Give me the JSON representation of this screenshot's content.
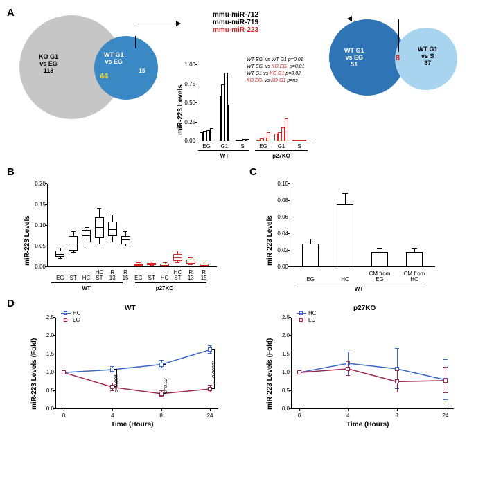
{
  "panelA": {
    "label": "A",
    "leftVenn": {
      "circle1": {
        "label": "KO G1\nvs EG\n113",
        "color": "#c6c6c6"
      },
      "circle2": {
        "label": "WT G1\nvs EG",
        "rightLabel": "15",
        "color": "#3a88c4"
      },
      "overlap": {
        "value": "44",
        "color": "#f2e24a"
      }
    },
    "mirList": {
      "line1": "mmu-miR-712",
      "line2": "mmu-miR-719",
      "line3": "mmu-miR-223"
    },
    "rightVenn": {
      "circle1": {
        "label": "WT G1\nvs EG\n51",
        "color": "#2f74b5"
      },
      "circle2": {
        "label": "WT G1\nvs S\n37",
        "color": "#a8d4ef"
      },
      "overlap": {
        "value": "8",
        "color": "#d62728"
      }
    },
    "barChart": {
      "ylabel": "miR-223 Levels",
      "ylim": [
        0,
        1.0
      ],
      "yticks": [
        0.0,
        0.25,
        0.5,
        0.75,
        1.0
      ],
      "groups": [
        "EG",
        "G1",
        "S",
        "EG",
        "G1",
        "S"
      ],
      "superGroups": [
        "WT",
        "p27KO"
      ],
      "wt": {
        "color": "#000000",
        "EG": [
          0.12,
          0.14,
          0.15,
          0.17
        ],
        "G1": [
          0.6,
          0.75,
          0.9,
          0.48
        ],
        "S": [
          0.02,
          0.02,
          0.03,
          0.03
        ]
      },
      "ko": {
        "color": "#d62728",
        "EG": [
          0.02,
          0.04,
          0.05,
          0.12
        ],
        "G1": [
          0.1,
          0.12,
          0.18,
          0.3
        ],
        "S": [
          0.01,
          0.01,
          0.02,
          0.02
        ]
      },
      "stats": [
        {
          "text": "WT EG. vs WT G1 p=0.01"
        },
        {
          "text": "WT EG. vs KO EG. p=0.01",
          "highlight": "KO EG."
        },
        {
          "text": "WT G1 vs KO G1 p=0.02",
          "highlight": "KO G1"
        },
        {
          "text": "KO EG. vs KO G1 p=ns",
          "highlight": "KO EG.",
          "highlight2": "KO G1"
        }
      ]
    }
  },
  "panelB": {
    "label": "B",
    "ylabel": "miR-223 Levels",
    "ylim": [
      0,
      0.2
    ],
    "yticks": [
      0.0,
      0.05,
      0.1,
      0.15,
      0.2
    ],
    "categories": [
      "EG",
      "ST",
      "HC",
      "HC\nST",
      "R\n13",
      "R\n15",
      "EG",
      "ST",
      "HC",
      "HC\nST",
      "R\n13",
      "R\n15"
    ],
    "superGroups": [
      "WT",
      "p27KO"
    ],
    "wt": {
      "color": "#000000",
      "boxes": [
        {
          "q1": 0.025,
          "med": 0.03,
          "q3": 0.04,
          "lo": 0.02,
          "hi": 0.045
        },
        {
          "q1": 0.04,
          "med": 0.055,
          "q3": 0.075,
          "lo": 0.035,
          "hi": 0.085
        },
        {
          "q1": 0.06,
          "med": 0.075,
          "q3": 0.09,
          "lo": 0.05,
          "hi": 0.095
        },
        {
          "q1": 0.07,
          "med": 0.095,
          "q3": 0.12,
          "lo": 0.055,
          "hi": 0.14
        },
        {
          "q1": 0.075,
          "med": 0.09,
          "q3": 0.11,
          "lo": 0.06,
          "hi": 0.125
        },
        {
          "q1": 0.055,
          "med": 0.065,
          "q3": 0.075,
          "lo": 0.05,
          "hi": 0.085
        }
      ]
    },
    "ko": {
      "color": "#d62728",
      "boxes": [
        {
          "q1": 0.003,
          "med": 0.005,
          "q3": 0.008,
          "lo": 0.002,
          "hi": 0.01
        },
        {
          "q1": 0.005,
          "med": 0.007,
          "q3": 0.01,
          "lo": 0.003,
          "hi": 0.012
        },
        {
          "q1": 0.004,
          "med": 0.006,
          "q3": 0.008,
          "lo": 0.002,
          "hi": 0.01
        },
        {
          "q1": 0.015,
          "med": 0.022,
          "q3": 0.032,
          "lo": 0.01,
          "hi": 0.038
        },
        {
          "q1": 0.008,
          "med": 0.012,
          "q3": 0.018,
          "lo": 0.005,
          "hi": 0.022
        },
        {
          "q1": 0.004,
          "med": 0.006,
          "q3": 0.009,
          "lo": 0.002,
          "hi": 0.012
        }
      ]
    }
  },
  "panelC": {
    "label": "C",
    "ylabel": "miR-223 Levels",
    "ylim": [
      0,
      0.1
    ],
    "yticks": [
      0.0,
      0.02,
      0.04,
      0.06,
      0.08,
      0.1
    ],
    "categories": [
      "EG",
      "HC",
      "CM from\nEG",
      "CM from\nHC"
    ],
    "values": [
      0.028,
      0.076,
      0.018,
      0.018
    ],
    "errors": [
      0.005,
      0.012,
      0.004,
      0.004
    ],
    "superGroup": "WT"
  },
  "panelD": {
    "label": "D",
    "ylabel": "miR-223 Levels (Fold)",
    "xlabel": "Time (Hours)",
    "xlim": [
      0,
      24
    ],
    "xticks": [
      0,
      4,
      8,
      24
    ],
    "ylim": [
      0,
      2.5
    ],
    "yticks": [
      0.0,
      0.5,
      1.0,
      1.5,
      2.0,
      2.5
    ],
    "legend": [
      {
        "label": "HC",
        "color": "#3a66c4"
      },
      {
        "label": "LC",
        "color": "#9c2550"
      }
    ],
    "wt": {
      "title": "WT",
      "hc": {
        "color": "#3a66c4",
        "x": [
          0,
          4,
          8,
          24
        ],
        "y": [
          1.0,
          1.08,
          1.22,
          1.62
        ],
        "err": [
          0.0,
          0.08,
          0.1,
          0.1
        ]
      },
      "lc": {
        "color": "#9c2550",
        "x": [
          0,
          4,
          8,
          24
        ],
        "y": [
          1.0,
          0.6,
          0.42,
          0.55
        ],
        "err": [
          0.0,
          0.1,
          0.08,
          0.1
        ]
      },
      "pvals": [
        {
          "x": 4,
          "text": "p=0.004"
        },
        {
          "x": 8,
          "text": "p=0.02"
        },
        {
          "x": 24,
          "text": "p=0.00002"
        }
      ]
    },
    "ko": {
      "title": "p27KO",
      "hc": {
        "color": "#3a66c4",
        "x": [
          0,
          4,
          8,
          24
        ],
        "y": [
          1.0,
          1.25,
          1.1,
          0.8
        ],
        "err": [
          0.0,
          0.3,
          0.55,
          0.55
        ]
      },
      "lc": {
        "color": "#9c2550",
        "x": [
          0,
          4,
          8,
          24
        ],
        "y": [
          1.0,
          1.1,
          0.75,
          0.78
        ],
        "err": [
          0.0,
          0.2,
          0.3,
          0.35
        ]
      }
    }
  },
  "colors": {
    "black": "#000000",
    "red": "#d62728",
    "blue": "#3a66c4",
    "maroon": "#9c2550",
    "yellow": "#f2e24a"
  }
}
